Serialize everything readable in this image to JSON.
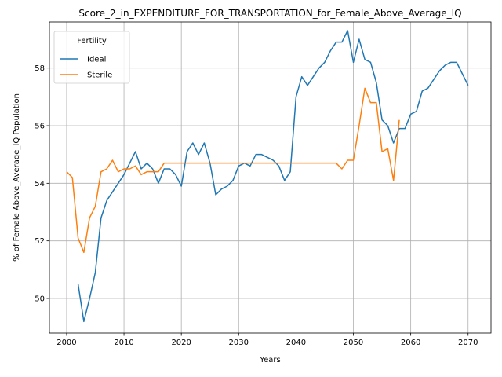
{
  "chart_data": {
    "type": "line",
    "title": "Score_2_in_EXPENDITURE_FOR_TRANSPORTATION_for_Female_Above_Average_IQ",
    "xlabel": "Years",
    "ylabel": "% of Female Above_Average_IQ Population",
    "xlim": [
      1997,
      2074
    ],
    "ylim": [
      48.8,
      59.6
    ],
    "xticks": [
      2000,
      2010,
      2020,
      2030,
      2040,
      2050,
      2060,
      2070
    ],
    "yticks": [
      50,
      52,
      54,
      56,
      58
    ],
    "grid": true,
    "legend": {
      "title": "Fertility",
      "placement": "top-left"
    },
    "series": [
      {
        "name": "Ideal",
        "color": "#1f77b4",
        "x": [
          2002,
          2003,
          2004,
          2005,
          2006,
          2007,
          2008,
          2009,
          2010,
          2011,
          2012,
          2013,
          2014,
          2015,
          2016,
          2017,
          2018,
          2019,
          2020,
          2021,
          2022,
          2023,
          2024,
          2025,
          2026,
          2027,
          2028,
          2029,
          2030,
          2031,
          2032,
          2033,
          2034,
          2035,
          2036,
          2037,
          2038,
          2039,
          2040,
          2041,
          2042,
          2043,
          2044,
          2045,
          2046,
          2047,
          2048,
          2049,
          2050,
          2051,
          2052,
          2053,
          2054,
          2055,
          2056,
          2057,
          2058,
          2059,
          2060,
          2061,
          2062,
          2063,
          2064,
          2065,
          2066,
          2067,
          2068,
          2069,
          2070
        ],
        "values": [
          50.5,
          49.2,
          50.0,
          50.9,
          52.8,
          53.4,
          53.7,
          54.0,
          54.3,
          54.7,
          55.1,
          54.5,
          54.7,
          54.5,
          54.0,
          54.5,
          54.5,
          54.3,
          53.9,
          55.1,
          55.4,
          55.0,
          55.4,
          54.7,
          53.6,
          53.8,
          53.9,
          54.1,
          54.6,
          54.7,
          54.6,
          55.0,
          55.0,
          54.9,
          54.8,
          54.6,
          54.1,
          54.4,
          57.0,
          57.7,
          57.4,
          57.7,
          58.0,
          58.2,
          58.6,
          58.9,
          58.9,
          59.3,
          58.2,
          59.0,
          58.3,
          58.2,
          57.5,
          56.2,
          56.0,
          55.4,
          55.9,
          55.9,
          56.4,
          56.5,
          57.2,
          57.3,
          57.6,
          57.9,
          58.1,
          58.2,
          58.2,
          57.8,
          57.4
        ]
      },
      {
        "name": "Sterile",
        "color": "#ff7f0e",
        "x": [
          2000,
          2001,
          2002,
          2003,
          2004,
          2005,
          2006,
          2007,
          2008,
          2009,
          2010,
          2011,
          2012,
          2013,
          2014,
          2015,
          2016,
          2017,
          2018,
          2019,
          2020,
          2021,
          2022,
          2023,
          2024,
          2025,
          2026,
          2027,
          2028,
          2029,
          2030,
          2031,
          2032,
          2033,
          2034,
          2035,
          2036,
          2037,
          2038,
          2039,
          2040,
          2041,
          2042,
          2043,
          2044,
          2045,
          2046,
          2047,
          2048,
          2049,
          2050,
          2051,
          2052,
          2053,
          2054,
          2055,
          2056,
          2057,
          2058
        ],
        "values": [
          54.4,
          54.2,
          52.1,
          51.6,
          52.8,
          53.2,
          54.4,
          54.5,
          54.8,
          54.4,
          54.5,
          54.5,
          54.6,
          54.3,
          54.4,
          54.4,
          54.4,
          54.7,
          54.7,
          54.7,
          54.7,
          54.7,
          54.7,
          54.7,
          54.7,
          54.7,
          54.7,
          54.7,
          54.7,
          54.7,
          54.7,
          54.7,
          54.7,
          54.7,
          54.7,
          54.7,
          54.7,
          54.7,
          54.7,
          54.7,
          54.7,
          54.7,
          54.7,
          54.7,
          54.7,
          54.7,
          54.7,
          54.7,
          54.5,
          54.8,
          54.8,
          56.0,
          57.3,
          56.8,
          56.8,
          55.1,
          55.2,
          54.1,
          56.2
        ]
      }
    ]
  }
}
